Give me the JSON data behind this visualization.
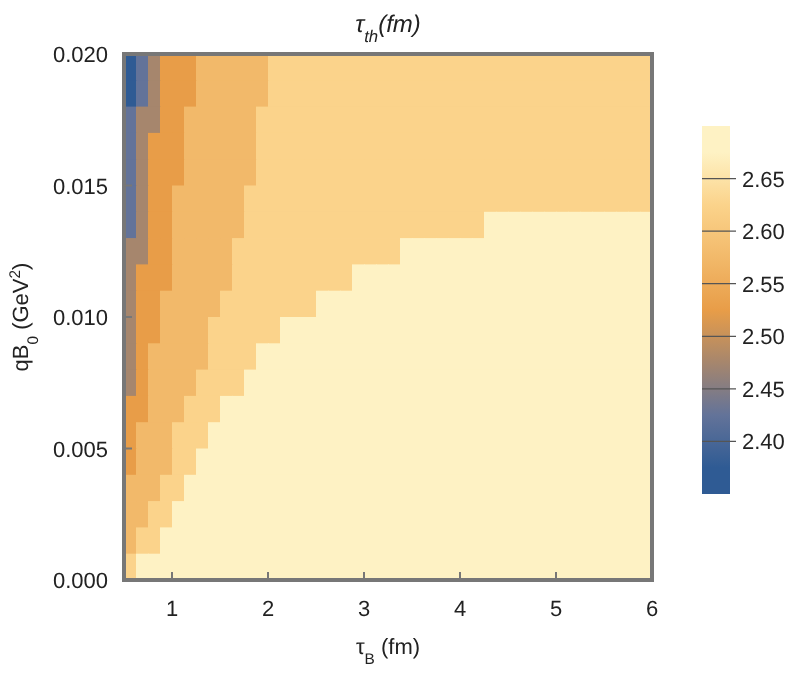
{
  "chart_data": {
    "type": "heatmap",
    "title": "τ$_{th}$(fm)",
    "xlabel": "τ$_{B}$ (fm)",
    "ylabel": "qB$_{0}$ (GeV$^{2}$)",
    "xlim": [
      0.5,
      6
    ],
    "ylim": [
      0,
      0.02
    ],
    "xticks": [
      1,
      2,
      3,
      4,
      5,
      6
    ],
    "yticks": [
      {
        "value": 0,
        "label": "0.000"
      },
      {
        "value": 0.005,
        "label": "0.005"
      },
      {
        "value": 0.01,
        "label": "0.010"
      },
      {
        "value": 0.015,
        "label": "0.015"
      },
      {
        "value": 0.02,
        "label": "0.020"
      }
    ],
    "clim": [
      2.35,
      2.7
    ],
    "cticks": [
      {
        "value": 2.4,
        "label": "2.40"
      },
      2.45,
      {
        "value": 2.5,
        "label": "2.50"
      },
      2.55,
      {
        "value": 2.6,
        "label": "2.60"
      },
      2.65
    ],
    "colors": [
      "#2f5b94",
      "#637399",
      "#a6866d",
      "#e89d48",
      "#f2b96a",
      "#fbd38b",
      "#fef2c4"
    ],
    "cells": [
      [
        2.375,
        2.425,
        2.475,
        2.525,
        2.525,
        2.525,
        2.575,
        2.575,
        2.575,
        2.575,
        2.575,
        2.575,
        2.625,
        2.625,
        2.625,
        2.625,
        2.625,
        2.625,
        2.625,
        2.625,
        2.625,
        2.625,
        2.625,
        2.625,
        2.625,
        2.625,
        2.625,
        2.625,
        2.625,
        2.625,
        2.625,
        2.625,
        2.625,
        2.625,
        2.625,
        2.625,
        2.625,
        2.625,
        2.625,
        2.625,
        2.625,
        2.625,
        2.625,
        2.625
      ],
      [
        2.375,
        2.425,
        2.475,
        2.525,
        2.525,
        2.525,
        2.575,
        2.575,
        2.575,
        2.575,
        2.575,
        2.575,
        2.625,
        2.625,
        2.625,
        2.625,
        2.625,
        2.625,
        2.625,
        2.625,
        2.625,
        2.625,
        2.625,
        2.625,
        2.625,
        2.625,
        2.625,
        2.625,
        2.625,
        2.625,
        2.625,
        2.625,
        2.625,
        2.625,
        2.625,
        2.625,
        2.625,
        2.625,
        2.625,
        2.625,
        2.625,
        2.625,
        2.625,
        2.625
      ],
      [
        2.425,
        2.475,
        2.475,
        2.525,
        2.525,
        2.575,
        2.575,
        2.575,
        2.575,
        2.575,
        2.575,
        2.625,
        2.625,
        2.625,
        2.625,
        2.625,
        2.625,
        2.625,
        2.625,
        2.625,
        2.625,
        2.625,
        2.625,
        2.625,
        2.625,
        2.625,
        2.625,
        2.625,
        2.625,
        2.625,
        2.625,
        2.625,
        2.625,
        2.625,
        2.625,
        2.625,
        2.625,
        2.625,
        2.625,
        2.625,
        2.625,
        2.625,
        2.625,
        2.625
      ],
      [
        2.425,
        2.475,
        2.525,
        2.525,
        2.525,
        2.575,
        2.575,
        2.575,
        2.575,
        2.575,
        2.575,
        2.625,
        2.625,
        2.625,
        2.625,
        2.625,
        2.625,
        2.625,
        2.625,
        2.625,
        2.625,
        2.625,
        2.625,
        2.625,
        2.625,
        2.625,
        2.625,
        2.625,
        2.625,
        2.625,
        2.625,
        2.625,
        2.625,
        2.625,
        2.625,
        2.625,
        2.625,
        2.625,
        2.625,
        2.625,
        2.625,
        2.625,
        2.625,
        2.625
      ],
      [
        2.425,
        2.475,
        2.525,
        2.525,
        2.525,
        2.575,
        2.575,
        2.575,
        2.575,
        2.575,
        2.575,
        2.625,
        2.625,
        2.625,
        2.625,
        2.625,
        2.625,
        2.625,
        2.625,
        2.625,
        2.625,
        2.625,
        2.625,
        2.625,
        2.625,
        2.625,
        2.625,
        2.625,
        2.625,
        2.625,
        2.625,
        2.625,
        2.625,
        2.625,
        2.625,
        2.625,
        2.625,
        2.625,
        2.625,
        2.625,
        2.625,
        2.625,
        2.625,
        2.625
      ],
      [
        2.425,
        2.475,
        2.525,
        2.525,
        2.575,
        2.575,
        2.575,
        2.575,
        2.575,
        2.575,
        2.625,
        2.625,
        2.625,
        2.625,
        2.625,
        2.625,
        2.625,
        2.625,
        2.625,
        2.625,
        2.625,
        2.625,
        2.625,
        2.625,
        2.625,
        2.625,
        2.625,
        2.625,
        2.625,
        2.625,
        2.625,
        2.625,
        2.625,
        2.625,
        2.625,
        2.625,
        2.625,
        2.625,
        2.625,
        2.625,
        2.625,
        2.625,
        2.625,
        2.625
      ],
      [
        2.425,
        2.475,
        2.525,
        2.525,
        2.575,
        2.575,
        2.575,
        2.575,
        2.575,
        2.575,
        2.625,
        2.625,
        2.625,
        2.625,
        2.625,
        2.625,
        2.625,
        2.625,
        2.625,
        2.625,
        2.625,
        2.625,
        2.625,
        2.625,
        2.625,
        2.625,
        2.625,
        2.625,
        2.625,
        2.625,
        2.675,
        2.675,
        2.675,
        2.675,
        2.675,
        2.675,
        2.675,
        2.675,
        2.675,
        2.675,
        2.675,
        2.675,
        2.675,
        2.675
      ],
      [
        2.475,
        2.475,
        2.525,
        2.525,
        2.575,
        2.575,
        2.575,
        2.575,
        2.575,
        2.625,
        2.625,
        2.625,
        2.625,
        2.625,
        2.625,
        2.625,
        2.625,
        2.625,
        2.625,
        2.625,
        2.625,
        2.625,
        2.625,
        2.675,
        2.675,
        2.675,
        2.675,
        2.675,
        2.675,
        2.675,
        2.675,
        2.675,
        2.675,
        2.675,
        2.675,
        2.675,
        2.675,
        2.675,
        2.675,
        2.675,
        2.675,
        2.675,
        2.675,
        2.675
      ],
      [
        2.475,
        2.525,
        2.525,
        2.525,
        2.575,
        2.575,
        2.575,
        2.575,
        2.575,
        2.625,
        2.625,
        2.625,
        2.625,
        2.625,
        2.625,
        2.625,
        2.625,
        2.625,
        2.625,
        2.675,
        2.675,
        2.675,
        2.675,
        2.675,
        2.675,
        2.675,
        2.675,
        2.675,
        2.675,
        2.675,
        2.675,
        2.675,
        2.675,
        2.675,
        2.675,
        2.675,
        2.675,
        2.675,
        2.675,
        2.675,
        2.675,
        2.675,
        2.675,
        2.675
      ],
      [
        2.475,
        2.525,
        2.525,
        2.575,
        2.575,
        2.575,
        2.575,
        2.575,
        2.625,
        2.625,
        2.625,
        2.625,
        2.625,
        2.625,
        2.625,
        2.625,
        2.675,
        2.675,
        2.675,
        2.675,
        2.675,
        2.675,
        2.675,
        2.675,
        2.675,
        2.675,
        2.675,
        2.675,
        2.675,
        2.675,
        2.675,
        2.675,
        2.675,
        2.675,
        2.675,
        2.675,
        2.675,
        2.675,
        2.675,
        2.675,
        2.675,
        2.675,
        2.675,
        2.675
      ],
      [
        2.475,
        2.525,
        2.525,
        2.575,
        2.575,
        2.575,
        2.575,
        2.625,
        2.625,
        2.625,
        2.625,
        2.625,
        2.625,
        2.675,
        2.675,
        2.675,
        2.675,
        2.675,
        2.675,
        2.675,
        2.675,
        2.675,
        2.675,
        2.675,
        2.675,
        2.675,
        2.675,
        2.675,
        2.675,
        2.675,
        2.675,
        2.675,
        2.675,
        2.675,
        2.675,
        2.675,
        2.675,
        2.675,
        2.675,
        2.675,
        2.675,
        2.675,
        2.675,
        2.675
      ],
      [
        2.475,
        2.525,
        2.575,
        2.575,
        2.575,
        2.575,
        2.575,
        2.625,
        2.625,
        2.625,
        2.625,
        2.675,
        2.675,
        2.675,
        2.675,
        2.675,
        2.675,
        2.675,
        2.675,
        2.675,
        2.675,
        2.675,
        2.675,
        2.675,
        2.675,
        2.675,
        2.675,
        2.675,
        2.675,
        2.675,
        2.675,
        2.675,
        2.675,
        2.675,
        2.675,
        2.675,
        2.675,
        2.675,
        2.675,
        2.675,
        2.675,
        2.675,
        2.675,
        2.675
      ],
      [
        2.475,
        2.525,
        2.575,
        2.575,
        2.575,
        2.575,
        2.625,
        2.625,
        2.625,
        2.625,
        2.675,
        2.675,
        2.675,
        2.675,
        2.675,
        2.675,
        2.675,
        2.675,
        2.675,
        2.675,
        2.675,
        2.675,
        2.675,
        2.675,
        2.675,
        2.675,
        2.675,
        2.675,
        2.675,
        2.675,
        2.675,
        2.675,
        2.675,
        2.675,
        2.675,
        2.675,
        2.675,
        2.675,
        2.675,
        2.675,
        2.675,
        2.675,
        2.675,
        2.675
      ],
      [
        2.525,
        2.525,
        2.575,
        2.575,
        2.575,
        2.625,
        2.625,
        2.625,
        2.675,
        2.675,
        2.675,
        2.675,
        2.675,
        2.675,
        2.675,
        2.675,
        2.675,
        2.675,
        2.675,
        2.675,
        2.675,
        2.675,
        2.675,
        2.675,
        2.675,
        2.675,
        2.675,
        2.675,
        2.675,
        2.675,
        2.675,
        2.675,
        2.675,
        2.675,
        2.675,
        2.675,
        2.675,
        2.675,
        2.675,
        2.675,
        2.675,
        2.675,
        2.675,
        2.675
      ],
      [
        2.525,
        2.575,
        2.575,
        2.575,
        2.625,
        2.625,
        2.625,
        2.675,
        2.675,
        2.675,
        2.675,
        2.675,
        2.675,
        2.675,
        2.675,
        2.675,
        2.675,
        2.675,
        2.675,
        2.675,
        2.675,
        2.675,
        2.675,
        2.675,
        2.675,
        2.675,
        2.675,
        2.675,
        2.675,
        2.675,
        2.675,
        2.675,
        2.675,
        2.675,
        2.675,
        2.675,
        2.675,
        2.675,
        2.675,
        2.675,
        2.675,
        2.675,
        2.675,
        2.675
      ],
      [
        2.525,
        2.575,
        2.575,
        2.575,
        2.625,
        2.625,
        2.675,
        2.675,
        2.675,
        2.675,
        2.675,
        2.675,
        2.675,
        2.675,
        2.675,
        2.675,
        2.675,
        2.675,
        2.675,
        2.675,
        2.675,
        2.675,
        2.675,
        2.675,
        2.675,
        2.675,
        2.675,
        2.675,
        2.675,
        2.675,
        2.675,
        2.675,
        2.675,
        2.675,
        2.675,
        2.675,
        2.675,
        2.675,
        2.675,
        2.675,
        2.675,
        2.675,
        2.675,
        2.675
      ],
      [
        2.575,
        2.575,
        2.575,
        2.625,
        2.625,
        2.675,
        2.675,
        2.675,
        2.675,
        2.675,
        2.675,
        2.675,
        2.675,
        2.675,
        2.675,
        2.675,
        2.675,
        2.675,
        2.675,
        2.675,
        2.675,
        2.675,
        2.675,
        2.675,
        2.675,
        2.675,
        2.675,
        2.675,
        2.675,
        2.675,
        2.675,
        2.675,
        2.675,
        2.675,
        2.675,
        2.675,
        2.675,
        2.675,
        2.675,
        2.675,
        2.675,
        2.675,
        2.675,
        2.675
      ],
      [
        2.575,
        2.575,
        2.625,
        2.625,
        2.675,
        2.675,
        2.675,
        2.675,
        2.675,
        2.675,
        2.675,
        2.675,
        2.675,
        2.675,
        2.675,
        2.675,
        2.675,
        2.675,
        2.675,
        2.675,
        2.675,
        2.675,
        2.675,
        2.675,
        2.675,
        2.675,
        2.675,
        2.675,
        2.675,
        2.675,
        2.675,
        2.675,
        2.675,
        2.675,
        2.675,
        2.675,
        2.675,
        2.675,
        2.675,
        2.675,
        2.675,
        2.675,
        2.675,
        2.675
      ],
      [
        2.575,
        2.625,
        2.625,
        2.675,
        2.675,
        2.675,
        2.675,
        2.675,
        2.675,
        2.675,
        2.675,
        2.675,
        2.675,
        2.675,
        2.675,
        2.675,
        2.675,
        2.675,
        2.675,
        2.675,
        2.675,
        2.675,
        2.675,
        2.675,
        2.675,
        2.675,
        2.675,
        2.675,
        2.675,
        2.675,
        2.675,
        2.675,
        2.675,
        2.675,
        2.675,
        2.675,
        2.675,
        2.675,
        2.675,
        2.675,
        2.675,
        2.675,
        2.675,
        2.675
      ],
      [
        2.625,
        2.675,
        2.675,
        2.675,
        2.675,
        2.675,
        2.675,
        2.675,
        2.675,
        2.675,
        2.675,
        2.675,
        2.675,
        2.675,
        2.675,
        2.675,
        2.675,
        2.675,
        2.675,
        2.675,
        2.675,
        2.675,
        2.675,
        2.675,
        2.675,
        2.675,
        2.675,
        2.675,
        2.675,
        2.675,
        2.675,
        2.675,
        2.675,
        2.675,
        2.675,
        2.675,
        2.675,
        2.675,
        2.675,
        2.675,
        2.675,
        2.675,
        2.675,
        2.675
      ]
    ]
  }
}
